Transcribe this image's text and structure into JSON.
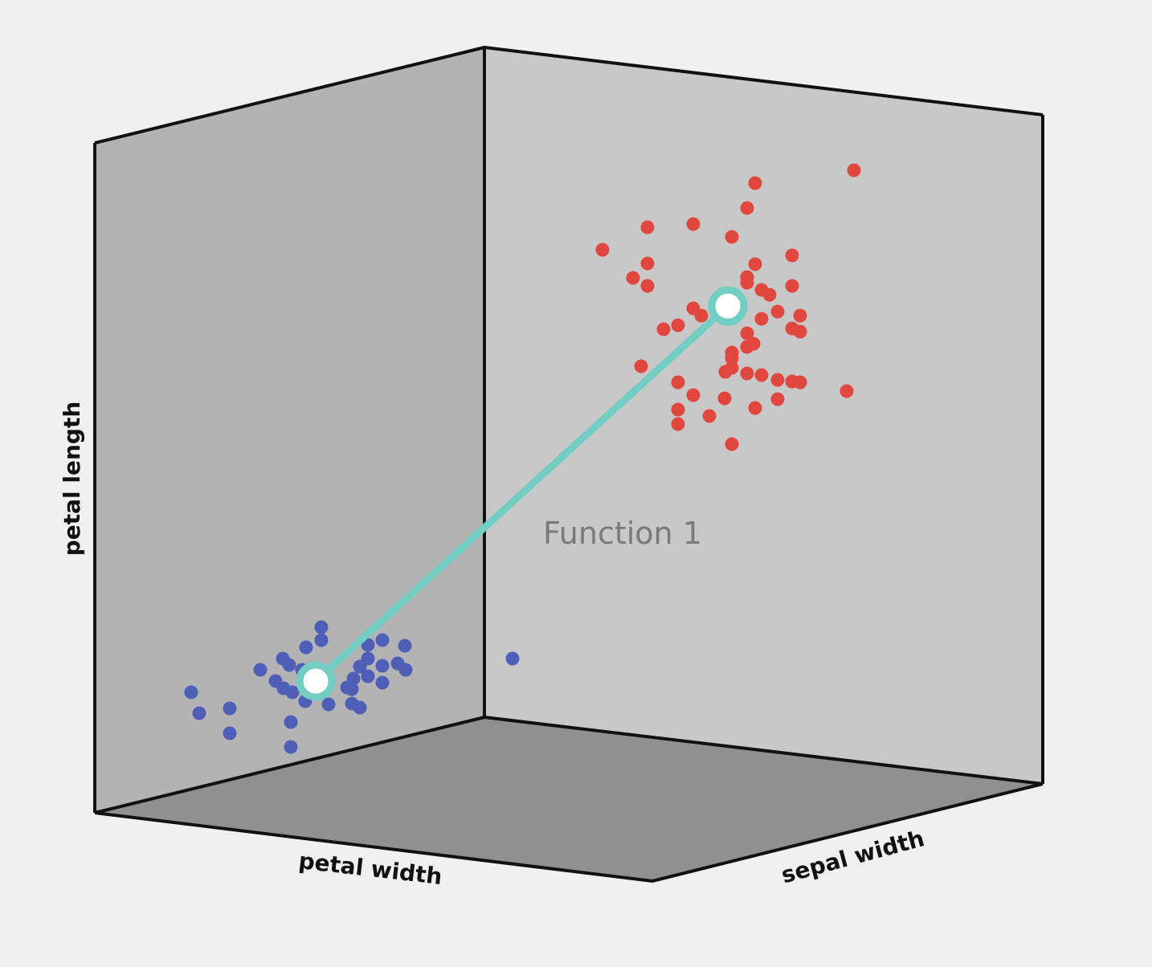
{
  "chart_data": {
    "type": "scatter",
    "title": "",
    "projection": "3d-box",
    "axes": {
      "x": {
        "label": "petal width"
      },
      "y": {
        "label": "sepal width"
      },
      "z": {
        "label": "petal length"
      }
    },
    "grid": false,
    "legend": "none",
    "annotation": "Function 1",
    "colors": {
      "background": "#f0f0f0",
      "left_wall": "#b3b3b3",
      "back_wall": "#c8c8c8",
      "floor": "#909090",
      "edges": "#111111",
      "blue_series": "#4f5fb8",
      "red_series": "#e0473f",
      "function_line": "#72cdc3",
      "centroid_fill": "#ffffff"
    },
    "series": [
      {
        "color": "blue",
        "points": [
          [
            400,
            781
          ],
          [
            400,
            797
          ],
          [
            381,
            806
          ],
          [
            352,
            820
          ],
          [
            324,
            834
          ],
          [
            360,
            828
          ],
          [
            376,
            834
          ],
          [
            343,
            848
          ],
          [
            353,
            857
          ],
          [
            364,
            862
          ],
          [
            380,
            873
          ],
          [
            238,
            862
          ],
          [
            248,
            888
          ],
          [
            286,
            882
          ],
          [
            286,
            913
          ],
          [
            362,
            899
          ],
          [
            362,
            930
          ],
          [
            409,
            877
          ],
          [
            438,
            876
          ],
          [
            448,
            881
          ],
          [
            432,
            856
          ],
          [
            438,
            858
          ],
          [
            440,
            845
          ],
          [
            448,
            830
          ],
          [
            458,
            820
          ],
          [
            458,
            803
          ],
          [
            476,
            797
          ],
          [
            504,
            804
          ],
          [
            476,
            829
          ],
          [
            495,
            826
          ],
          [
            505,
            834
          ],
          [
            476,
            850
          ],
          [
            458,
            842
          ],
          [
            638,
            820
          ]
        ]
      },
      {
        "color": "red",
        "points": [
          [
            1063,
            212
          ],
          [
            940,
            228
          ],
          [
            930,
            259
          ],
          [
            863,
            279
          ],
          [
            806,
            283
          ],
          [
            911,
            295
          ],
          [
            750,
            311
          ],
          [
            986,
            318
          ],
          [
            940,
            329
          ],
          [
            806,
            328
          ],
          [
            788,
            346
          ],
          [
            806,
            356
          ],
          [
            930,
            345
          ],
          [
            930,
            352
          ],
          [
            948,
            361
          ],
          [
            958,
            367
          ],
          [
            986,
            356
          ],
          [
            863,
            384
          ],
          [
            873,
            393
          ],
          [
            844,
            405
          ],
          [
            826,
            410
          ],
          [
            948,
            397
          ],
          [
            968,
            388
          ],
          [
            996,
            393
          ],
          [
            986,
            409
          ],
          [
            996,
            413
          ],
          [
            930,
            415
          ],
          [
            938,
            428
          ],
          [
            930,
            432
          ],
          [
            911,
            439
          ],
          [
            911,
            446
          ],
          [
            903,
            463
          ],
          [
            911,
            458
          ],
          [
            930,
            465
          ],
          [
            948,
            467
          ],
          [
            968,
            473
          ],
          [
            986,
            475
          ],
          [
            996,
            476
          ],
          [
            798,
            456
          ],
          [
            844,
            476
          ],
          [
            863,
            492
          ],
          [
            902,
            496
          ],
          [
            940,
            508
          ],
          [
            968,
            497
          ],
          [
            844,
            510
          ],
          [
            883,
            518
          ],
          [
            844,
            528
          ],
          [
            911,
            553
          ],
          [
            1054,
            487
          ]
        ]
      }
    ],
    "centroids": [
      {
        "series": "blue",
        "screen": [
          393,
          848
        ]
      },
      {
        "series": "red",
        "screen": [
          906,
          381
        ]
      }
    ]
  }
}
